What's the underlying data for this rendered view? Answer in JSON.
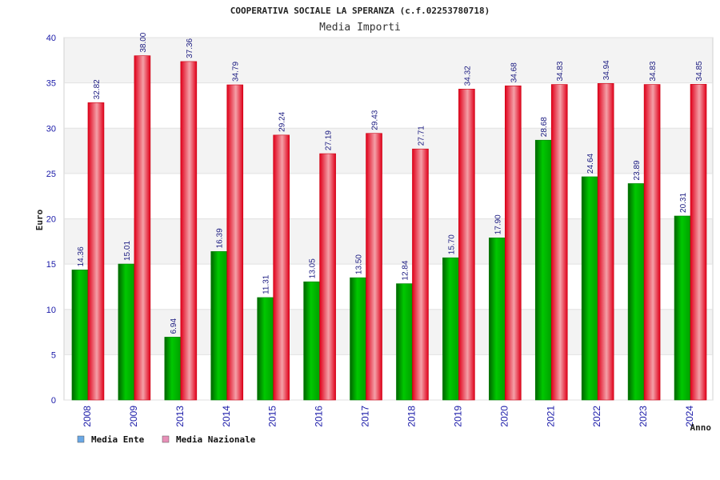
{
  "chart_data": {
    "type": "bar",
    "title": "COOPERATIVA SOCIALE LA SPERANZA (c.f.02253780718)",
    "subtitle": "Media Importi",
    "xlabel": "Anno",
    "ylabel": "Euro",
    "ylim": [
      0,
      40
    ],
    "yticks": [
      0,
      5,
      10,
      15,
      20,
      25,
      30,
      35,
      40
    ],
    "grid": true,
    "legend_position": "bottom-left",
    "categories": [
      "2008",
      "2009",
      "2013",
      "2014",
      "2015",
      "2016",
      "2017",
      "2018",
      "2019",
      "2020",
      "2021",
      "2022",
      "2023",
      "2024"
    ],
    "series": [
      {
        "name": "Media Ente",
        "color": "#00b400",
        "legend_color": "#6aa8e6",
        "values": [
          14.36,
          15.01,
          6.94,
          16.39,
          11.31,
          13.05,
          13.5,
          12.84,
          15.7,
          17.9,
          28.68,
          24.64,
          23.89,
          20.31
        ],
        "labels": [
          "14.36",
          "15.01",
          "6.94",
          "16.39",
          "11.31",
          "13.05",
          "13.50",
          "12.84",
          "15.70",
          "17.90",
          "28.68",
          "24.64",
          "23.89",
          "20.31"
        ]
      },
      {
        "name": "Media Nazionale",
        "color": "#ee1122",
        "legend_color": "#e890b8",
        "values": [
          32.82,
          38.0,
          37.36,
          34.79,
          29.24,
          27.19,
          29.43,
          27.71,
          34.32,
          34.68,
          34.83,
          34.94,
          34.83,
          34.85
        ],
        "labels": [
          "32.82",
          "38.00",
          "37.36",
          "34.79",
          "29.24",
          "27.19",
          "29.43",
          "27.71",
          "34.32",
          "34.68",
          "34.83",
          "34.94",
          "34.83",
          "34.85"
        ]
      }
    ]
  }
}
